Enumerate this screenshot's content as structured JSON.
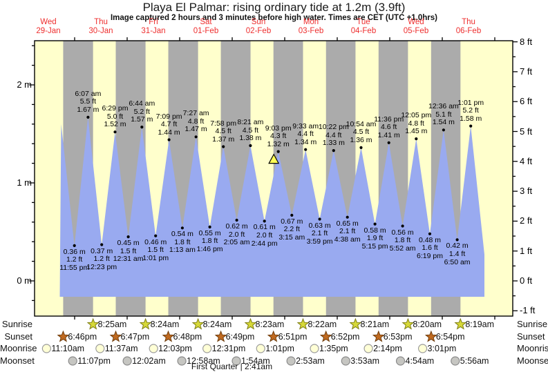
{
  "title": "Playa El Palmar: rising  ordinary tide at 1.2m (3.9ft)",
  "subtitle": "Image captured 2 hours and 3 minutes before high water. Times are CET (UTC +1.0hrs)",
  "chart_data": {
    "type": "area",
    "title": "Playa El Palmar: rising ordinary tide at 1.2m (3.9ft)",
    "days": [
      {
        "name": "Wed",
        "date": "29-Jan"
      },
      {
        "name": "Thu",
        "date": "30-Jan"
      },
      {
        "name": "Fri",
        "date": "31-Jan"
      },
      {
        "name": "Sat",
        "date": "01-Feb"
      },
      {
        "name": "Sun",
        "date": "02-Feb"
      },
      {
        "name": "Mon",
        "date": "03-Feb"
      },
      {
        "name": "Tue",
        "date": "04-Feb"
      },
      {
        "name": "Wed",
        "date": "05-Feb"
      },
      {
        "name": "Thu",
        "date": "06-Feb"
      }
    ],
    "y_axis_left": {
      "unit": "m",
      "ticks": [
        {
          "label": "2 m",
          "value": 2
        },
        {
          "label": "1 m",
          "value": 1
        },
        {
          "label": "0 m",
          "value": 0
        }
      ]
    },
    "y_axis_right": {
      "unit": "ft",
      "ticks": [
        {
          "label": "8 ft",
          "value": 8
        },
        {
          "label": "7 ft",
          "value": 7
        },
        {
          "label": "6 ft",
          "value": 6
        },
        {
          "label": "5 ft",
          "value": 5
        },
        {
          "label": "4 ft",
          "value": 4
        },
        {
          "label": "3 ft",
          "value": 3
        },
        {
          "label": "2 ft",
          "value": 2
        },
        {
          "label": "1 ft",
          "value": 1
        },
        {
          "label": "0 ft",
          "value": 0
        },
        {
          "label": "-1 ft",
          "value": -1
        }
      ]
    },
    "tide_events": [
      {
        "type": "low",
        "day": 0,
        "time": "11:55 pm",
        "m": "0.36 m",
        "ft": "1.2 ft"
      },
      {
        "type": "high",
        "day": 1,
        "time": "6:07 am",
        "ft": "5.5 ft",
        "m": "1.67 m"
      },
      {
        "type": "low",
        "day": 1,
        "time": "12:23 pm",
        "m": "0.37 m",
        "ft": "1.2 ft"
      },
      {
        "type": "high",
        "day": 1,
        "time": "6:29 pm",
        "ft": "5.0 ft",
        "m": "1.52 m"
      },
      {
        "type": "low",
        "day": 2,
        "time": "12:31 am",
        "m": "0.45 m",
        "ft": "1.5 ft"
      },
      {
        "type": "high",
        "day": 2,
        "time": "6:44 am",
        "ft": "5.2 ft",
        "m": "1.57 m"
      },
      {
        "type": "low",
        "day": 2,
        "time": "1:01 pm",
        "m": "0.46 m",
        "ft": "1.5 ft"
      },
      {
        "type": "high",
        "day": 2,
        "time": "7:09 pm",
        "ft": "4.7 ft",
        "m": "1.44 m"
      },
      {
        "type": "low",
        "day": 3,
        "time": "1:13 am",
        "m": "0.54 m",
        "ft": "1.8 ft"
      },
      {
        "type": "high",
        "day": 3,
        "time": "7:27 am",
        "ft": "4.8 ft",
        "m": "1.47 m"
      },
      {
        "type": "low",
        "day": 3,
        "time": "1:46 pm",
        "m": "0.55 m",
        "ft": "1.8 ft"
      },
      {
        "type": "high",
        "day": 3,
        "time": "7:58 pm",
        "ft": "4.5 ft",
        "m": "1.37 m"
      },
      {
        "type": "low",
        "day": 4,
        "time": "2:05 am",
        "m": "0.62 m",
        "ft": "2.0 ft"
      },
      {
        "type": "high",
        "day": 4,
        "time": "8:21 am",
        "ft": "4.5 ft",
        "m": "1.38 m"
      },
      {
        "type": "low",
        "day": 4,
        "time": "2:44 pm",
        "m": "0.61 m",
        "ft": "2.0 ft"
      },
      {
        "type": "high",
        "day": 4,
        "time": "9:03 pm",
        "ft": "4.3 ft",
        "m": "1.32 m"
      },
      {
        "type": "low",
        "day": 5,
        "time": "3:15 am",
        "m": "0.67 m",
        "ft": "2.2 ft"
      },
      {
        "type": "high",
        "day": 5,
        "time": "9:33 am",
        "ft": "4.4 ft",
        "m": "1.34 m"
      },
      {
        "type": "low",
        "day": 5,
        "time": "3:59 pm",
        "m": "0.63 m",
        "ft": "2.1 ft"
      },
      {
        "type": "high",
        "day": 5,
        "time": "10:22 pm",
        "ft": "4.4 ft",
        "m": "1.33 m"
      },
      {
        "type": "low",
        "day": 6,
        "time": "4:38 am",
        "m": "0.65 m",
        "ft": "2.1 ft"
      },
      {
        "type": "high",
        "day": 6,
        "time": "10:54 am",
        "ft": "4.5 ft",
        "m": "1.36 m"
      },
      {
        "type": "low",
        "day": 6,
        "time": "5:15 pm",
        "m": "0.58 m",
        "ft": "1.9 ft"
      },
      {
        "type": "high",
        "day": 6,
        "time": "11:36 pm",
        "ft": "4.6 ft",
        "m": "1.41 m"
      },
      {
        "type": "low",
        "day": 7,
        "time": "5:52 am",
        "m": "0.56 m",
        "ft": "1.8 ft"
      },
      {
        "type": "high",
        "day": 7,
        "time": "12:05 pm",
        "ft": "4.8 ft",
        "m": "1.45 m"
      },
      {
        "type": "low",
        "day": 7,
        "time": "6:19 pm",
        "m": "0.48 m",
        "ft": "1.6 ft"
      },
      {
        "type": "high",
        "day": 8,
        "time": "12:36 am",
        "ft": "5.1 ft",
        "m": "1.54 m"
      },
      {
        "type": "low",
        "day": 8,
        "time": "6:50 am",
        "m": "0.42 m",
        "ft": "1.4 ft"
      },
      {
        "type": "high",
        "day": 8,
        "time": "1:01 pm",
        "ft": "5.2 ft",
        "m": "1.58 m"
      }
    ],
    "curve_start": {
      "day": 0,
      "time": "5:50 pm",
      "height_m": 1.6
    },
    "curve_end": {
      "day": 8,
      "time": "7:15 pm",
      "height_m": 0.27
    },
    "current_tide_marker": {
      "shape": "yellow-triangle",
      "day": 4,
      "time": "7:00 pm",
      "height_m": 1.2
    },
    "colors": {
      "day_band": "#ffffcc",
      "night_band": "#ababab",
      "tide_fill": "#99aaf0",
      "day_label": "#ee2e2e",
      "marker_fill": "#ffff55",
      "sunrise_star": "#d6d838",
      "sunset_star": "#c06a20",
      "moonrise_circle": "#ffffd6",
      "moonset_circle": "#c6c6c2"
    }
  },
  "sun_moon": {
    "rows": [
      {
        "id": "sunrise",
        "label": "Sunrise",
        "icon": "sunrise-star-icon",
        "events": [
          {
            "day": 1,
            "time": "8:25am"
          },
          {
            "day": 2,
            "time": "8:24am"
          },
          {
            "day": 3,
            "time": "8:24am"
          },
          {
            "day": 4,
            "time": "8:23am"
          },
          {
            "day": 5,
            "time": "8:22am"
          },
          {
            "day": 6,
            "time": "8:21am"
          },
          {
            "day": 7,
            "time": "8:20am"
          },
          {
            "day": 8,
            "time": "8:19am"
          }
        ]
      },
      {
        "id": "sunset",
        "label": "Sunset",
        "icon": "sunset-star-icon",
        "events": [
          {
            "day": 0,
            "time": "6:46pm"
          },
          {
            "day": 1,
            "time": "6:47pm"
          },
          {
            "day": 2,
            "time": "6:48pm"
          },
          {
            "day": 3,
            "time": "6:49pm"
          },
          {
            "day": 4,
            "time": "6:51pm"
          },
          {
            "day": 5,
            "time": "6:52pm"
          },
          {
            "day": 6,
            "time": "6:53pm"
          },
          {
            "day": 7,
            "time": "6:54pm"
          }
        ]
      },
      {
        "id": "moonrise",
        "label": "Moonrise",
        "icon": "moonrise-circle-icon",
        "events": [
          {
            "day": 0,
            "time": "11:10am"
          },
          {
            "day": 1,
            "time": "11:37am"
          },
          {
            "day": 2,
            "time": "12:03pm"
          },
          {
            "day": 3,
            "time": "12:31pm"
          },
          {
            "day": 4,
            "time": "1:01pm"
          },
          {
            "day": 5,
            "time": "1:35pm"
          },
          {
            "day": 6,
            "time": "2:14pm"
          },
          {
            "day": 7,
            "time": "3:01pm"
          }
        ]
      },
      {
        "id": "moonset",
        "label": "Moonset",
        "icon": "moonset-circle-icon",
        "events": [
          {
            "day": 0,
            "time": "11:07pm"
          },
          {
            "day": 2,
            "time": "12:02am"
          },
          {
            "day": 3,
            "time": "12:58am"
          },
          {
            "day": 4,
            "time": "1:54am"
          },
          {
            "day": 5,
            "time": "2:53am"
          },
          {
            "day": 6,
            "time": "3:53am"
          },
          {
            "day": 7,
            "time": "4:54am"
          },
          {
            "day": 8,
            "time": "5:56am"
          }
        ]
      }
    ]
  },
  "moon_phase": "First Quarter | 2:41am"
}
